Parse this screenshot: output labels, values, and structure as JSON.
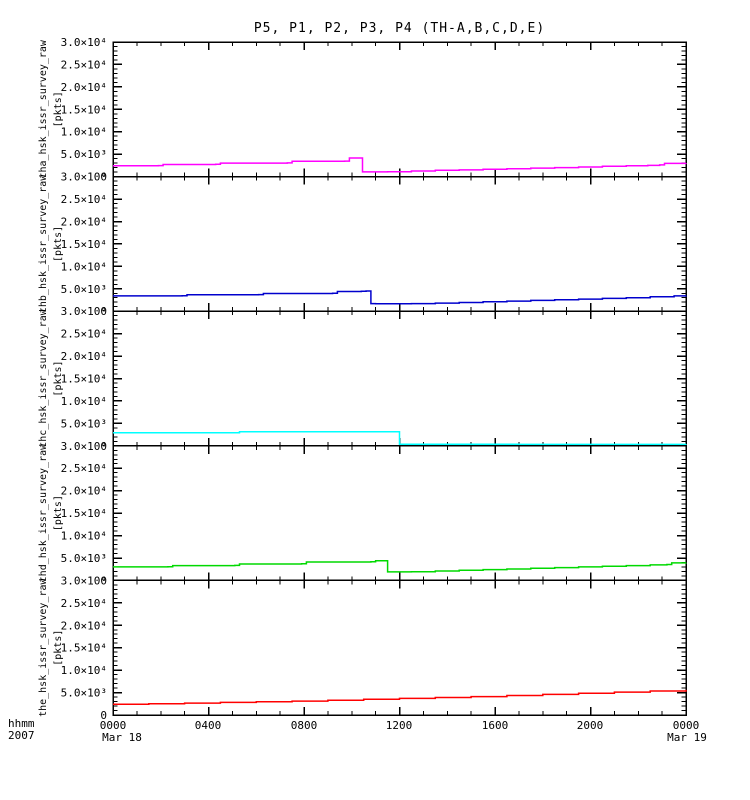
{
  "chart_data": {
    "type": "line",
    "title": "P5, P1, P2, P3, P4 (TH-A,B,C,D,E)",
    "layout": {
      "panel_stack": 5,
      "grid": false,
      "legend": "none",
      "background": "#ffffff",
      "frame_color": "#000000"
    },
    "time_axis": {
      "units_label": "hhmm",
      "year_label": "2007",
      "range_hours": [
        0,
        24
      ],
      "major_tick_hours": [
        0,
        4,
        8,
        12,
        16,
        20,
        24
      ],
      "tick_labels": [
        "0000",
        "0400",
        "0800",
        "1200",
        "1600",
        "2000",
        "0000"
      ],
      "minor_tick_every_hours": 1,
      "start_date_label": "Mar 18",
      "end_date_label": "Mar 19"
    },
    "value_axis": {
      "range": [
        0,
        30000
      ],
      "major_tick_step": 5000,
      "minor_tick_step": 1000,
      "tick_labels": {
        "30000": "3.0×10⁴",
        "25000": "2.5×10⁴",
        "20000": "2.0×10⁴",
        "15000": "1.5×10⁴",
        "10000": "1.0×10⁴",
        "5000": "5.0×10³",
        "0": "0"
      }
    },
    "panels": [
      {
        "name": "tha_hsk_issr_survey_raw",
        "units": "[pkts]",
        "color": "#ff00ff",
        "points": [
          [
            0,
            2400
          ],
          [
            1.9,
            2450
          ],
          [
            2.1,
            2700
          ],
          [
            4.3,
            2750
          ],
          [
            4.5,
            3000
          ],
          [
            7.3,
            3050
          ],
          [
            7.5,
            3400
          ],
          [
            9.7,
            3450
          ],
          [
            9.9,
            4150
          ],
          [
            10.3,
            4150
          ],
          [
            10.45,
            1050
          ],
          [
            11.5,
            1100
          ],
          [
            12.5,
            1250
          ],
          [
            13.5,
            1400
          ],
          [
            14.5,
            1500
          ],
          [
            15.5,
            1650
          ],
          [
            16.5,
            1750
          ],
          [
            17.5,
            1900
          ],
          [
            18.5,
            2000
          ],
          [
            19.5,
            2150
          ],
          [
            20.5,
            2300
          ],
          [
            21.5,
            2400
          ],
          [
            22.4,
            2500
          ],
          [
            22.9,
            2600
          ],
          [
            23.1,
            2950
          ],
          [
            24,
            3000
          ]
        ]
      },
      {
        "name": "thb_hsk_issr_survey_raw",
        "units": "[pkts]",
        "color": "#0000cd",
        "points": [
          [
            0,
            3400
          ],
          [
            2.9,
            3450
          ],
          [
            3.1,
            3650
          ],
          [
            6.1,
            3700
          ],
          [
            6.3,
            3950
          ],
          [
            9.2,
            4000
          ],
          [
            9.4,
            4400
          ],
          [
            10.4,
            4450
          ],
          [
            10.6,
            4500
          ],
          [
            10.8,
            1700
          ],
          [
            11.0,
            1650
          ],
          [
            12.5,
            1700
          ],
          [
            13.5,
            1800
          ],
          [
            14.5,
            1950
          ],
          [
            15.5,
            2100
          ],
          [
            16.5,
            2250
          ],
          [
            17.5,
            2400
          ],
          [
            18.5,
            2550
          ],
          [
            19.5,
            2700
          ],
          [
            20.5,
            2850
          ],
          [
            21.5,
            3000
          ],
          [
            22.5,
            3200
          ],
          [
            23.5,
            3400
          ],
          [
            24,
            3500
          ]
        ]
      },
      {
        "name": "thc_hsk_issr_survey_raw",
        "units": "[pkts]",
        "color": "#00ffff",
        "points": [
          [
            0,
            2900
          ],
          [
            5.1,
            2900
          ],
          [
            5.3,
            3150
          ],
          [
            11.85,
            3150
          ],
          [
            12.0,
            350
          ],
          [
            17,
            320
          ],
          [
            24,
            380
          ]
        ]
      },
      {
        "name": "thd_hsk_issr_survey_raw",
        "units": "[pkts]",
        "color": "#00d900",
        "points": [
          [
            0,
            3000
          ],
          [
            2.3,
            3050
          ],
          [
            2.5,
            3300
          ],
          [
            5.1,
            3350
          ],
          [
            5.3,
            3650
          ],
          [
            7.9,
            3700
          ],
          [
            8.1,
            4100
          ],
          [
            10.8,
            4150
          ],
          [
            11.0,
            4400
          ],
          [
            11.3,
            4400
          ],
          [
            11.5,
            1900
          ],
          [
            12.5,
            1950
          ],
          [
            13.5,
            2100
          ],
          [
            14.5,
            2250
          ],
          [
            15.5,
            2400
          ],
          [
            16.5,
            2550
          ],
          [
            17.5,
            2700
          ],
          [
            18.5,
            2850
          ],
          [
            19.5,
            3000
          ],
          [
            20.5,
            3150
          ],
          [
            21.5,
            3300
          ],
          [
            22.5,
            3450
          ],
          [
            23.2,
            3550
          ],
          [
            23.4,
            3900
          ],
          [
            24,
            3950
          ]
        ]
      },
      {
        "name": "the_hsk_issr_survey_raw",
        "units": "[pkts]",
        "color": "#ff0000",
        "points": [
          [
            0,
            2400
          ],
          [
            1.5,
            2500
          ],
          [
            3,
            2650
          ],
          [
            4.5,
            2800
          ],
          [
            6,
            2950
          ],
          [
            7.5,
            3100
          ],
          [
            9,
            3300
          ],
          [
            10.5,
            3500
          ],
          [
            12,
            3700
          ],
          [
            13.5,
            3900
          ],
          [
            15,
            4100
          ],
          [
            16.5,
            4350
          ],
          [
            18,
            4600
          ],
          [
            19.5,
            4850
          ],
          [
            21,
            5100
          ],
          [
            22.5,
            5350
          ],
          [
            24,
            5600
          ]
        ]
      }
    ]
  }
}
